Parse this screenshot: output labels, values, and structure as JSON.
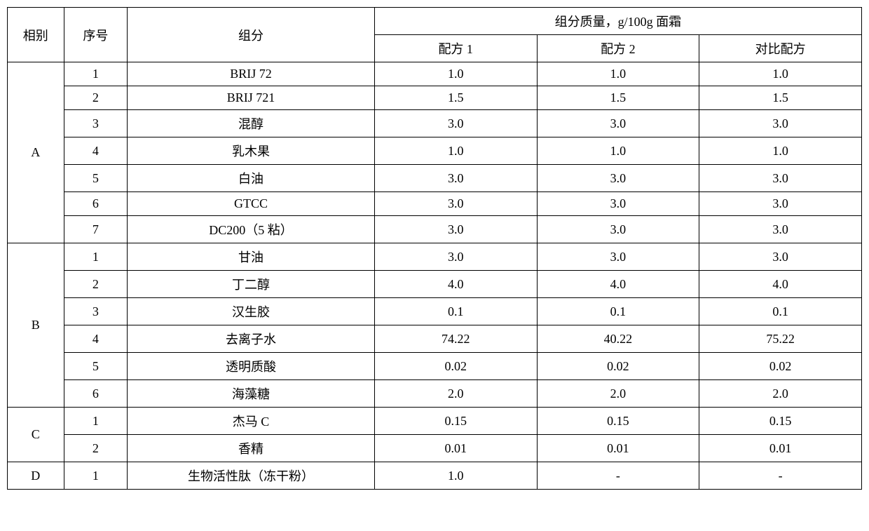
{
  "headers": {
    "phase": "相别",
    "seq": "序号",
    "component": "组分",
    "mass_group": "组分质量，g/100g 面霜",
    "formula1": "配方 1",
    "formula2": "配方 2",
    "compare": "对比配方"
  },
  "groups": [
    {
      "phase": "A",
      "rows": [
        {
          "seq": "1",
          "component": "BRIJ 72",
          "v1": "1.0",
          "v2": "1.0",
          "v3": "1.0"
        },
        {
          "seq": "2",
          "component": "BRIJ 721",
          "v1": "1.5",
          "v2": "1.5",
          "v3": "1.5"
        },
        {
          "seq": "3",
          "component": "混醇",
          "v1": "3.0",
          "v2": "3.0",
          "v3": "3.0"
        },
        {
          "seq": "4",
          "component": "乳木果",
          "v1": "1.0",
          "v2": "1.0",
          "v3": "1.0"
        },
        {
          "seq": "5",
          "component": "白油",
          "v1": "3.0",
          "v2": "3.0",
          "v3": "3.0"
        },
        {
          "seq": "6",
          "component": "GTCC",
          "v1": "3.0",
          "v2": "3.0",
          "v3": "3.0"
        },
        {
          "seq": "7",
          "component": "DC200（5 粘）",
          "v1": "3.0",
          "v2": "3.0",
          "v3": "3.0"
        }
      ]
    },
    {
      "phase": "B",
      "rows": [
        {
          "seq": "1",
          "component": "甘油",
          "v1": "3.0",
          "v2": "3.0",
          "v3": "3.0"
        },
        {
          "seq": "2",
          "component": "丁二醇",
          "v1": "4.0",
          "v2": "4.0",
          "v3": "4.0"
        },
        {
          "seq": "3",
          "component": "汉生胶",
          "v1": "0.1",
          "v2": "0.1",
          "v3": "0.1"
        },
        {
          "seq": "4",
          "component": "去离子水",
          "v1": "74.22",
          "v2": "40.22",
          "v3": "75.22"
        },
        {
          "seq": "5",
          "component": "透明质酸",
          "v1": "0.02",
          "v2": "0.02",
          "v3": "0.02"
        },
        {
          "seq": "6",
          "component": "海藻糖",
          "v1": "2.0",
          "v2": "2.0",
          "v3": "2.0"
        }
      ]
    },
    {
      "phase": "C",
      "rows": [
        {
          "seq": "1",
          "component": "杰马 C",
          "v1": "0.15",
          "v2": "0.15",
          "v3": "0.15"
        },
        {
          "seq": "2",
          "component": "香精",
          "v1": "0.01",
          "v2": "0.01",
          "v3": "0.01"
        }
      ]
    },
    {
      "phase": "D",
      "rows": [
        {
          "seq": "1",
          "component": "生物活性肽（冻干粉）",
          "v1": "1.0",
          "v2": "-",
          "v3": "-"
        }
      ]
    }
  ]
}
